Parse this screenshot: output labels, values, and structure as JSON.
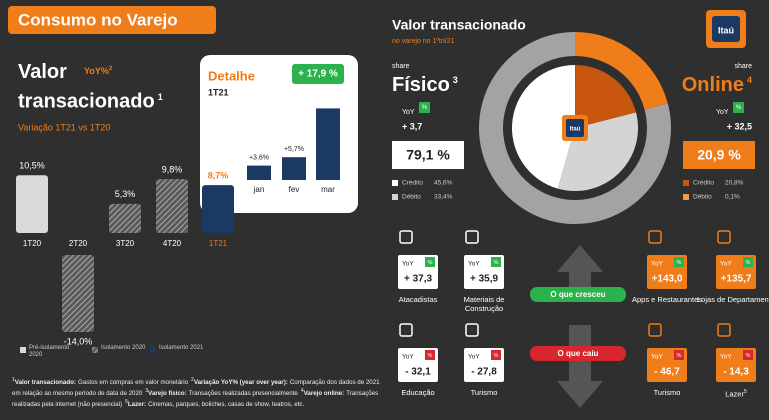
{
  "header": {
    "title": "Consumo no Varejo",
    "logo": "Itaú"
  },
  "chart_data": [
    {
      "type": "bar",
      "title": "Valor transacionado",
      "title_note": "1",
      "unit_label": "YoY%",
      "unit_note": "2",
      "subtitle": "Variação 1T21 vs 1T20",
      "categories": [
        "1T20",
        "2T20",
        "3T20",
        "4T20",
        "1T21"
      ],
      "values": [
        10.5,
        -14.0,
        5.3,
        9.8,
        8.7
      ],
      "value_labels": [
        "10,5%",
        "-14,0%",
        "5,3%",
        "9,8%",
        "8,7%"
      ],
      "colors": [
        "#d9d9d9",
        "#9a9a9a",
        "#9a9a9a",
        "#9a9a9a",
        "#1b3a63"
      ],
      "hatched": [
        false,
        true,
        true,
        true,
        false
      ],
      "category_colors": [
        "#ffffff",
        "#ffffff",
        "#ffffff",
        "#ffffff",
        "#ef7d1a"
      ],
      "legend": [
        {
          "name": "Pré-isolamento 2020",
          "color": "#d9d9d9",
          "hatched": false
        },
        {
          "name": "Isolamento 2020",
          "color": "#9a9a9a",
          "hatched": true
        },
        {
          "name": "Isolamento 2021",
          "color": "#1b3a63",
          "hatched": false
        }
      ]
    },
    {
      "type": "bar",
      "title": "Detalhe",
      "subtitle": "1T21",
      "categories": [
        "jan",
        "fev",
        "mar"
      ],
      "values": [
        3.6,
        5.7,
        17.9
      ],
      "value_labels": [
        "+3,6%",
        "+5,7%",
        "+ 17,9 %"
      ],
      "color": "#1b3a63"
    },
    {
      "type": "donut",
      "title": "Valor transacionado",
      "subtitle": "no varejo no 1ºtri/21",
      "share_label": "share",
      "categories": [
        "Físico",
        "Online"
      ],
      "category_notes": [
        "3",
        "4"
      ],
      "values": [
        79.1,
        20.9
      ],
      "value_labels": [
        "79,1 %",
        "20,9 %"
      ],
      "colors": [
        "#a3a3a3",
        "#ef7d1a"
      ],
      "yoy_label": "YoY",
      "yoy_unit": "%",
      "yoy_labels": [
        "+ 3,7",
        "+ 32,5"
      ],
      "breakdown": {
        "categories": [
          "Crédito",
          "Débito"
        ],
        "series": [
          {
            "values": [
              45.6,
              33.4
            ],
            "value_labels": [
              "45,6%",
              "33,4%"
            ],
            "colors": [
              "#ffffff",
              "#d4d4d4"
            ]
          },
          {
            "values": [
              20.8,
              0.1
            ],
            "value_labels": [
              "20,8%",
              "0,1%"
            ],
            "colors": [
              "#c9560f",
              "#f29a4a"
            ]
          }
        ]
      }
    }
  ],
  "sectors": {
    "label": "YoY",
    "unit": "%",
    "grew": "O que cresceu",
    "fell": "O que caiu",
    "items": [
      {
        "name": "Atacadistas",
        "yoy": "+ 37,3",
        "trend": "up",
        "channel": 0
      },
      {
        "name": "Materiais de Construção",
        "yoy": "+ 35,9",
        "trend": "up",
        "channel": 0
      },
      {
        "name": "Apps e Restaurantes",
        "yoy": "+143,0",
        "trend": "up",
        "channel": 1
      },
      {
        "name": "Lojas de Departamento",
        "yoy": "+135,7",
        "trend": "up",
        "channel": 1
      },
      {
        "name": "Educação",
        "yoy": "- 32,1",
        "trend": "down",
        "channel": 0
      },
      {
        "name": "Turismo",
        "yoy": "- 27,8",
        "trend": "down",
        "channel": 0
      },
      {
        "name": "Turismo",
        "yoy": "- 46,7",
        "trend": "down",
        "channel": 1
      },
      {
        "name": "Lazer",
        "note": "5",
        "yoy": "- 14,3",
        "trend": "down",
        "channel": 1
      }
    ]
  },
  "footnotes": [
    {
      "mark": "1",
      "term": "Valor transacionado:",
      "text": "Gastos em compras em valor monetário"
    },
    {
      "mark": "2",
      "term": "Variação YoY% (year over year):",
      "text": "Comparação dos dados de 2021 em relação ao mesmo período de data de 2020"
    },
    {
      "mark": "3",
      "term": "Varejo físico:",
      "text": "Transações realizadas presencialmente"
    },
    {
      "mark": "4",
      "term": "Varejo online:",
      "text": "Transações realizadas pela internet (não presencial)"
    },
    {
      "mark": "5",
      "term": "Lazer:",
      "text": "Cinemas, parques, boliches, casas de show, teatros, etc."
    }
  ]
}
